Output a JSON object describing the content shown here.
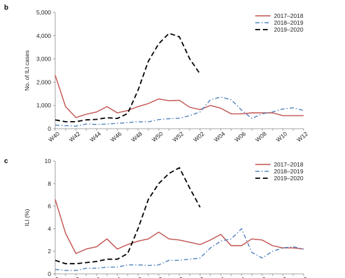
{
  "chart_data": [
    {
      "panel": "b",
      "type": "line",
      "ylabel": "No. of ILI cases",
      "xlabel": "",
      "ylim": [
        0,
        5000
      ],
      "yticks": [
        "0",
        "1,000",
        "2,000",
        "3,000",
        "4,000",
        "5,000"
      ],
      "x_tick_labels": [
        "W40",
        "W42",
        "W44",
        "W46",
        "W48",
        "W50",
        "W52",
        "W02",
        "W04",
        "W06",
        "W08",
        "W10",
        "W12"
      ],
      "legend_position": "top-right",
      "series": [
        {
          "name": "2017–2018",
          "color": "#c0504d",
          "style": "solid",
          "values": [
            2300,
            950,
            480,
            620,
            720,
            950,
            680,
            780,
            950,
            1080,
            1280,
            1200,
            1220,
            920,
            820,
            1000,
            880,
            640,
            640,
            680,
            680,
            680,
            560,
            560,
            560
          ]
        },
        {
          "name": "2018–2019",
          "color": "#4f81bd",
          "style": "dashdot",
          "values": [
            150,
            130,
            110,
            200,
            180,
            200,
            230,
            260,
            300,
            290,
            390,
            430,
            450,
            560,
            720,
            1250,
            1360,
            1250,
            800,
            440,
            640,
            720,
            850,
            900,
            780
          ]
        },
        {
          "name": "2019–2020",
          "color": "#000000",
          "style": "dashed",
          "values": [
            380,
            300,
            300,
            380,
            400,
            470,
            440,
            650,
            1650,
            2900,
            3650,
            4100,
            3950,
            3000,
            2350
          ]
        }
      ]
    },
    {
      "panel": "c",
      "type": "line",
      "ylabel": "ILI (%)",
      "xlabel": "",
      "ylim": [
        0,
        10
      ],
      "yticks": [
        "0",
        "2",
        "4",
        "6",
        "8",
        "10"
      ],
      "x_tick_labels": [
        "W40",
        "W42",
        "W44",
        "W46",
        "W48",
        "W50",
        "W52",
        "W02",
        "W04",
        "W06",
        "W08",
        "W10",
        "W12"
      ],
      "legend_position": "top-right",
      "series": [
        {
          "name": "2017–2018",
          "color": "#c0504d",
          "style": "solid",
          "values": [
            6.6,
            3.6,
            1.8,
            2.2,
            2.4,
            3.1,
            2.2,
            2.6,
            2.9,
            3.1,
            3.7,
            3.1,
            3.0,
            2.8,
            2.6,
            3.0,
            3.5,
            2.5,
            2.5,
            3.1,
            3.0,
            2.5,
            2.3,
            2.3,
            2.2
          ]
        },
        {
          "name": "2018–2019",
          "color": "#4f81bd",
          "style": "dashdot",
          "values": [
            0.4,
            0.3,
            0.3,
            0.5,
            0.5,
            0.6,
            0.6,
            0.8,
            0.8,
            0.75,
            0.8,
            1.2,
            1.2,
            1.3,
            1.4,
            2.3,
            2.9,
            3.1,
            4.0,
            1.9,
            1.4,
            2.0,
            2.3,
            2.4,
            2.2
          ]
        },
        {
          "name": "2019–2020",
          "color": "#000000",
          "style": "dashed",
          "values": [
            1.2,
            0.9,
            0.9,
            1.0,
            1.1,
            1.3,
            1.3,
            1.8,
            4.0,
            6.6,
            8.0,
            8.9,
            9.4,
            7.6,
            5.9
          ]
        }
      ]
    }
  ]
}
